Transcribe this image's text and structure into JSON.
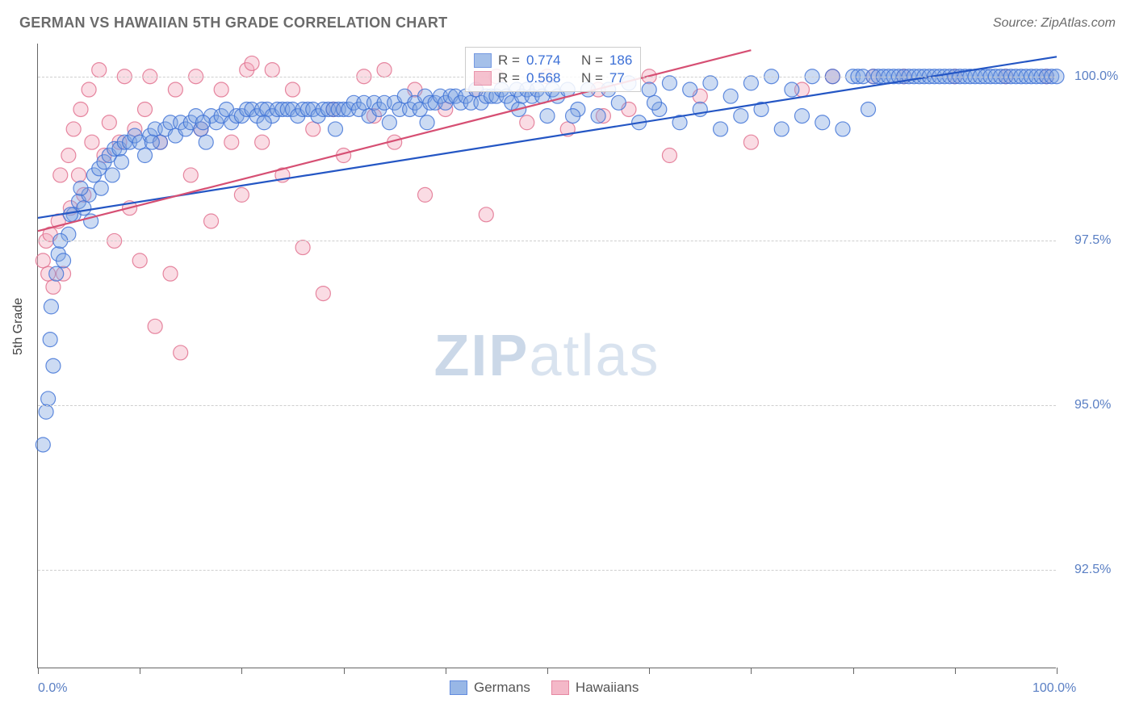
{
  "header": {
    "title": "GERMAN VS HAWAIIAN 5TH GRADE CORRELATION CHART",
    "source": "Source: ZipAtlas.com"
  },
  "y_axis_label": "5th Grade",
  "watermark": {
    "bold": "ZIP",
    "rest": "atlas"
  },
  "chart": {
    "type": "scatter",
    "background_color": "#ffffff",
    "grid_color": "#cfcfcf",
    "axis_color": "#666666",
    "x_range": [
      0,
      100
    ],
    "y_range": [
      91.0,
      100.5
    ],
    "y_ticks": [
      92.5,
      95.0,
      97.5,
      100.0
    ],
    "y_tick_labels": [
      "92.5%",
      "95.0%",
      "97.5%",
      "100.0%"
    ],
    "x_ticks": [
      0,
      10,
      20,
      30,
      40,
      50,
      60,
      70,
      80,
      90,
      100
    ],
    "x_range_labels": {
      "min": "0.0%",
      "max": "100.0%"
    },
    "x_range_label_color": "#5a7fc4",
    "y_tick_label_color": "#5a7fc4",
    "label_fontsize": 16,
    "marker_radius": 9,
    "marker_opacity": 0.4,
    "marker_stroke_opacity": 0.8,
    "marker_stroke_width": 1.2,
    "line_width": 2.2,
    "series": [
      {
        "name": "Germans",
        "color_fill": "#7fa6e0",
        "color_stroke": "#3b6fd6",
        "line_color": "#2456c4",
        "trend": {
          "x1": 0,
          "y1": 97.85,
          "x2": 100,
          "y2": 100.3
        },
        "r": "0.774",
        "n": "186",
        "points": [
          [
            0.5,
            94.4
          ],
          [
            0.8,
            94.9
          ],
          [
            1.0,
            95.1
          ],
          [
            1.2,
            96.0
          ],
          [
            1.5,
            95.6
          ],
          [
            1.8,
            97.0
          ],
          [
            2.0,
            97.3
          ],
          [
            2.5,
            97.2
          ],
          [
            3.0,
            97.6
          ],
          [
            3.5,
            97.9
          ],
          [
            4.0,
            98.1
          ],
          [
            4.5,
            98.0
          ],
          [
            5.0,
            98.2
          ],
          [
            5.2,
            97.8
          ],
          [
            5.5,
            98.5
          ],
          [
            6.0,
            98.6
          ],
          [
            6.5,
            98.7
          ],
          [
            7.0,
            98.8
          ],
          [
            7.3,
            98.5
          ],
          [
            7.5,
            98.9
          ],
          [
            8.0,
            98.9
          ],
          [
            8.5,
            99.0
          ],
          [
            9.0,
            99.0
          ],
          [
            9.5,
            99.1
          ],
          [
            10.0,
            99.0
          ],
          [
            10.5,
            98.8
          ],
          [
            11.0,
            99.1
          ],
          [
            11.5,
            99.2
          ],
          [
            12.0,
            99.0
          ],
          [
            12.5,
            99.2
          ],
          [
            13.0,
            99.3
          ],
          [
            13.5,
            99.1
          ],
          [
            14.0,
            99.3
          ],
          [
            14.5,
            99.2
          ],
          [
            15.0,
            99.3
          ],
          [
            15.5,
            99.4
          ],
          [
            16.0,
            99.2
          ],
          [
            16.5,
            99.0
          ],
          [
            17.0,
            99.4
          ],
          [
            17.5,
            99.3
          ],
          [
            18.0,
            99.4
          ],
          [
            18.5,
            99.5
          ],
          [
            19.0,
            99.3
          ],
          [
            19.5,
            99.4
          ],
          [
            20.0,
            99.4
          ],
          [
            20.5,
            99.5
          ],
          [
            21.0,
            99.5
          ],
          [
            21.5,
            99.4
          ],
          [
            22.0,
            99.5
          ],
          [
            22.5,
            99.5
          ],
          [
            23.0,
            99.4
          ],
          [
            23.5,
            99.5
          ],
          [
            24.0,
            99.5
          ],
          [
            24.5,
            99.5
          ],
          [
            25.0,
            99.5
          ],
          [
            25.5,
            99.4
          ],
          [
            26.0,
            99.5
          ],
          [
            26.5,
            99.5
          ],
          [
            27.0,
            99.5
          ],
          [
            27.5,
            99.4
          ],
          [
            28.0,
            99.5
          ],
          [
            28.5,
            99.5
          ],
          [
            29.0,
            99.5
          ],
          [
            29.5,
            99.5
          ],
          [
            30.0,
            99.5
          ],
          [
            30.5,
            99.5
          ],
          [
            31.0,
            99.6
          ],
          [
            31.5,
            99.5
          ],
          [
            32.0,
            99.6
          ],
          [
            32.5,
            99.4
          ],
          [
            33.0,
            99.6
          ],
          [
            33.5,
            99.5
          ],
          [
            34.0,
            99.6
          ],
          [
            34.5,
            99.3
          ],
          [
            35.0,
            99.6
          ],
          [
            35.5,
            99.5
          ],
          [
            36.0,
            99.7
          ],
          [
            36.5,
            99.5
          ],
          [
            37.0,
            99.6
          ],
          [
            37.5,
            99.5
          ],
          [
            38.0,
            99.7
          ],
          [
            38.5,
            99.6
          ],
          [
            39.0,
            99.6
          ],
          [
            39.5,
            99.7
          ],
          [
            40.0,
            99.6
          ],
          [
            40.5,
            99.7
          ],
          [
            41.0,
            99.7
          ],
          [
            41.5,
            99.6
          ],
          [
            42.0,
            99.7
          ],
          [
            42.5,
            99.6
          ],
          [
            43.0,
            99.8
          ],
          [
            43.5,
            99.6
          ],
          [
            44.0,
            99.7
          ],
          [
            44.5,
            99.7
          ],
          [
            45.0,
            99.7
          ],
          [
            45.5,
            99.8
          ],
          [
            46.0,
            99.7
          ],
          [
            46.5,
            99.6
          ],
          [
            47.0,
            99.8
          ],
          [
            47.5,
            99.7
          ],
          [
            48.0,
            99.8
          ],
          [
            48.5,
            99.7
          ],
          [
            49.0,
            99.8
          ],
          [
            49.5,
            99.7
          ],
          [
            50.0,
            99.4
          ],
          [
            50.5,
            99.8
          ],
          [
            51.0,
            99.7
          ],
          [
            52.0,
            99.8
          ],
          [
            53.0,
            99.5
          ],
          [
            54.0,
            99.8
          ],
          [
            55.0,
            99.4
          ],
          [
            56.0,
            99.8
          ],
          [
            57.0,
            99.6
          ],
          [
            58.0,
            99.9
          ],
          [
            59.0,
            99.3
          ],
          [
            60.0,
            99.8
          ],
          [
            61.0,
            99.5
          ],
          [
            62.0,
            99.9
          ],
          [
            63.0,
            99.3
          ],
          [
            64.0,
            99.8
          ],
          [
            65.0,
            99.5
          ],
          [
            66.0,
            99.9
          ],
          [
            67.0,
            99.2
          ],
          [
            68.0,
            99.7
          ],
          [
            69.0,
            99.4
          ],
          [
            70.0,
            99.9
          ],
          [
            71.0,
            99.5
          ],
          [
            72.0,
            100.0
          ],
          [
            73.0,
            99.2
          ],
          [
            74.0,
            99.8
          ],
          [
            75.0,
            99.4
          ],
          [
            76.0,
            100.0
          ],
          [
            77.0,
            99.3
          ],
          [
            78.0,
            100.0
          ],
          [
            79.0,
            99.2
          ],
          [
            80.0,
            100.0
          ],
          [
            80.5,
            100.0
          ],
          [
            81.0,
            100.0
          ],
          [
            81.5,
            99.5
          ],
          [
            82.0,
            100.0
          ],
          [
            82.5,
            100.0
          ],
          [
            83.0,
            100.0
          ],
          [
            83.5,
            100.0
          ],
          [
            84.0,
            100.0
          ],
          [
            84.5,
            100.0
          ],
          [
            85.0,
            100.0
          ],
          [
            85.5,
            100.0
          ],
          [
            86.0,
            100.0
          ],
          [
            86.5,
            100.0
          ],
          [
            87.0,
            100.0
          ],
          [
            87.5,
            100.0
          ],
          [
            88.0,
            100.0
          ],
          [
            88.5,
            100.0
          ],
          [
            89.0,
            100.0
          ],
          [
            89.5,
            100.0
          ],
          [
            90.0,
            100.0
          ],
          [
            90.5,
            100.0
          ],
          [
            91.0,
            100.0
          ],
          [
            91.5,
            100.0
          ],
          [
            92.0,
            100.0
          ],
          [
            92.5,
            100.0
          ],
          [
            93.0,
            100.0
          ],
          [
            93.5,
            100.0
          ],
          [
            94.0,
            100.0
          ],
          [
            94.5,
            100.0
          ],
          [
            95.0,
            100.0
          ],
          [
            95.5,
            100.0
          ],
          [
            96.0,
            100.0
          ],
          [
            96.5,
            100.0
          ],
          [
            97.0,
            100.0
          ],
          [
            97.5,
            100.0
          ],
          [
            98.0,
            100.0
          ],
          [
            98.5,
            100.0
          ],
          [
            99.0,
            100.0
          ],
          [
            99.5,
            100.0
          ],
          [
            100.0,
            100.0
          ],
          [
            60.5,
            99.6
          ],
          [
            52.5,
            99.4
          ],
          [
            47.2,
            99.5
          ],
          [
            38.2,
            99.3
          ],
          [
            29.2,
            99.2
          ],
          [
            22.2,
            99.3
          ],
          [
            16.2,
            99.3
          ],
          [
            11.2,
            99.0
          ],
          [
            8.2,
            98.7
          ],
          [
            6.2,
            98.3
          ],
          [
            4.2,
            98.3
          ],
          [
            3.2,
            97.9
          ],
          [
            2.2,
            97.5
          ],
          [
            1.3,
            96.5
          ]
        ]
      },
      {
        "name": "Hawaiians",
        "color_fill": "#f2a7bb",
        "color_stroke": "#e06a8a",
        "line_color": "#d64f73",
        "trend": {
          "x1": 0,
          "y1": 97.65,
          "x2": 70,
          "y2": 100.4
        },
        "r": "0.568",
        "n": "77",
        "points": [
          [
            0.5,
            97.2
          ],
          [
            0.8,
            97.5
          ],
          [
            1.0,
            97.0
          ],
          [
            1.2,
            97.6
          ],
          [
            1.5,
            96.8
          ],
          [
            2.0,
            97.8
          ],
          [
            2.2,
            98.5
          ],
          [
            2.5,
            97.0
          ],
          [
            3.0,
            98.8
          ],
          [
            3.2,
            98.0
          ],
          [
            3.5,
            99.2
          ],
          [
            4.0,
            98.5
          ],
          [
            4.2,
            99.5
          ],
          [
            4.5,
            98.2
          ],
          [
            5.0,
            99.8
          ],
          [
            5.3,
            99.0
          ],
          [
            6.0,
            100.1
          ],
          [
            6.5,
            98.8
          ],
          [
            7.0,
            99.3
          ],
          [
            7.5,
            97.5
          ],
          [
            8.0,
            99.0
          ],
          [
            8.5,
            100.0
          ],
          [
            9.0,
            98.0
          ],
          [
            9.5,
            99.2
          ],
          [
            10.0,
            97.2
          ],
          [
            10.5,
            99.5
          ],
          [
            11.0,
            100.0
          ],
          [
            11.5,
            96.2
          ],
          [
            12.0,
            99.0
          ],
          [
            13.0,
            97.0
          ],
          [
            13.5,
            99.8
          ],
          [
            14.0,
            95.8
          ],
          [
            15.0,
            98.5
          ],
          [
            15.5,
            100.0
          ],
          [
            16.0,
            99.2
          ],
          [
            17.0,
            97.8
          ],
          [
            18.0,
            99.8
          ],
          [
            19.0,
            99.0
          ],
          [
            20.0,
            98.2
          ],
          [
            20.5,
            100.1
          ],
          [
            21.0,
            100.2
          ],
          [
            22.0,
            99.0
          ],
          [
            23.0,
            100.1
          ],
          [
            24.0,
            98.5
          ],
          [
            25.0,
            99.8
          ],
          [
            26.0,
            97.4
          ],
          [
            27.0,
            99.2
          ],
          [
            28.0,
            96.7
          ],
          [
            29.0,
            99.5
          ],
          [
            30.0,
            98.8
          ],
          [
            32.0,
            100.0
          ],
          [
            33.0,
            99.4
          ],
          [
            34.0,
            100.1
          ],
          [
            35.0,
            99.0
          ],
          [
            37.0,
            99.8
          ],
          [
            38.0,
            98.2
          ],
          [
            40.0,
            99.5
          ],
          [
            43.0,
            99.8
          ],
          [
            44.0,
            97.9
          ],
          [
            45.0,
            100.0
          ],
          [
            48.0,
            99.3
          ],
          [
            50.0,
            100.0
          ],
          [
            52.0,
            99.2
          ],
          [
            55.0,
            99.8
          ],
          [
            55.5,
            99.4
          ],
          [
            58.0,
            99.5
          ],
          [
            60.0,
            100.0
          ],
          [
            62.0,
            98.8
          ],
          [
            65.0,
            99.7
          ],
          [
            70.0,
            99.0
          ],
          [
            75.0,
            99.8
          ],
          [
            78.0,
            100.0
          ],
          [
            82.0,
            100.0
          ],
          [
            85.0,
            100.0
          ],
          [
            90.0,
            100.0
          ],
          [
            95.0,
            100.0
          ],
          [
            99.0,
            100.0
          ]
        ]
      }
    ]
  },
  "legend_top": {
    "r_label": "R =",
    "n_label": "N ="
  },
  "legend_bottom": {
    "items": [
      "Germans",
      "Hawaiians"
    ]
  }
}
